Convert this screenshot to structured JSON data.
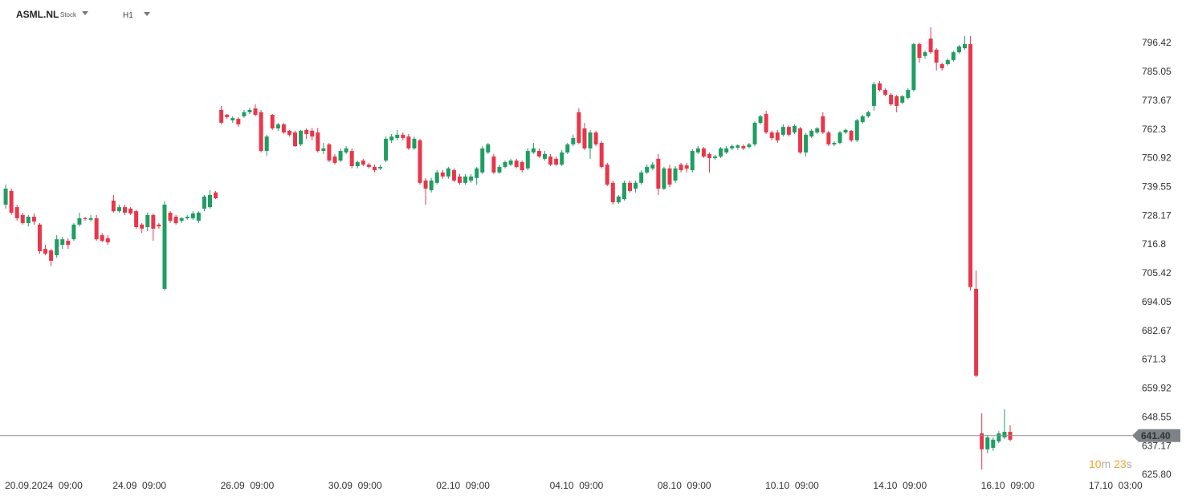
{
  "header": {
    "symbol": "ASML.NL",
    "kind": "Stock",
    "interval": "H1"
  },
  "chart_data": {
    "type": "candlestick",
    "up_color": "#1f9d62",
    "down_color": "#e8364a",
    "open": [
      732.7,
      738.1,
      731.7,
      728.6,
      725.4,
      727.9,
      724.8,
      715.2,
      714.6,
      712.7,
      716.8,
      718.4,
      719.0,
      724.8,
      727.3,
      726.7,
      727.3,
      720.6,
      719.4,
      734.3,
      730.1,
      731.7,
      731.1,
      730.1,
      724.8,
      723.8,
      728.6,
      724.8,
      699.4,
      729.5,
      727.9,
      726.3,
      727.3,
      727.3,
      726.3,
      731.1,
      731.7,
      737.5,
      770.1,
      768.2,
      766.0,
      766.6,
      767.6,
      769.2,
      770.7,
      769.2,
      753.9,
      768.2,
      762.8,
      764.4,
      761.9,
      761.2,
      756.5,
      762.2,
      761.9,
      761.2,
      753.9,
      756.5,
      751.7,
      750.1,
      753.3,
      753.9,
      747.9,
      750.1,
      748.5,
      747.6,
      747.0,
      750.1,
      758.1,
      759.0,
      760.3,
      759.6,
      754.9,
      758.1,
      742.2,
      738.4,
      741.3,
      745.4,
      743.8,
      746.3,
      743.8,
      741.3,
      742.2,
      743.2,
      745.4,
      753.3,
      751.7,
      745.4,
      747.6,
      748.5,
      750.1,
      749.5,
      747.0,
      753.3,
      753.9,
      750.8,
      751.7,
      750.8,
      748.5,
      753.3,
      756.5,
      769.2,
      762.8,
      754.9,
      761.2,
      757.1,
      748.5,
      741.3,
      733.6,
      734.9,
      741.3,
      739.0,
      741.3,
      745.4,
      747.0,
      750.8,
      739.0,
      747.0,
      742.2,
      748.5,
      748.2,
      746.3,
      753.3,
      754.9,
      752.7,
      751.1,
      751.7,
      753.3,
      754.9,
      755.2,
      755.8,
      755.5,
      756.5,
      765.0,
      768.5,
      761.2,
      761.2,
      760.3,
      763.4,
      761.2,
      762.8,
      753.3,
      759.6,
      761.2,
      767.6,
      761.2,
      756.5,
      757.1,
      761.2,
      761.9,
      758.1,
      765.3,
      767.6,
      771.7,
      780.6,
      778.0,
      776.1,
      775.5,
      773.0,
      774.9,
      778.0,
      796.1,
      791.4,
      798.3,
      793.9,
      788.2,
      788.2,
      789.8,
      792.9,
      794.5,
      796.1,
      699.4,
      642.3,
      636.0,
      636.6,
      639.1,
      640.7,
      642.9
    ],
    "high": [
      740.6,
      739.0,
      732.7,
      729.5,
      728.6,
      729.2,
      725.4,
      716.8,
      715.2,
      720.6,
      720.0,
      719.4,
      725.4,
      729.5,
      727.9,
      728.6,
      728.6,
      721.5,
      720.6,
      736.5,
      732.7,
      732.7,
      731.7,
      730.6,
      725.4,
      729.5,
      729.2,
      725.4,
      734.0,
      730.1,
      728.6,
      727.9,
      728.6,
      730.1,
      730.1,
      736.5,
      738.4,
      738.1,
      771.7,
      768.5,
      767.6,
      767.3,
      770.1,
      771.0,
      772.3,
      770.1,
      760.3,
      768.5,
      765.0,
      765.0,
      762.2,
      761.9,
      762.2,
      762.8,
      763.0,
      763.0,
      757.1,
      757.1,
      752.7,
      754.9,
      755.8,
      754.9,
      750.1,
      750.8,
      749.2,
      748.5,
      748.5,
      759.6,
      760.6,
      762.2,
      761.2,
      760.6,
      759.6,
      758.7,
      743.2,
      743.2,
      746.3,
      746.3,
      747.6,
      747.0,
      744.8,
      744.8,
      744.8,
      747.6,
      755.8,
      757.1,
      752.7,
      748.5,
      750.1,
      750.8,
      750.8,
      750.1,
      754.9,
      757.1,
      754.9,
      753.9,
      752.7,
      751.7,
      754.3,
      757.1,
      760.3,
      770.7,
      765.0,
      762.2,
      761.9,
      757.7,
      749.2,
      742.2,
      736.5,
      742.2,
      742.2,
      742.2,
      746.3,
      748.5,
      749.5,
      752.7,
      747.6,
      748.5,
      747.9,
      749.2,
      749.2,
      754.6,
      755.8,
      755.5,
      753.3,
      752.4,
      755.5,
      755.8,
      756.5,
      756.5,
      756.5,
      757.1,
      765.6,
      768.2,
      769.8,
      761.9,
      762.2,
      764.4,
      764.1,
      764.4,
      763.4,
      760.9,
      762.5,
      763.4,
      769.2,
      761.9,
      757.7,
      761.9,
      762.8,
      762.2,
      766.6,
      768.2,
      769.8,
      781.2,
      781.5,
      778.7,
      776.8,
      776.1,
      776.1,
      778.7,
      796.7,
      796.7,
      793.5,
      802.8,
      794.5,
      788.8,
      790.4,
      793.5,
      795.8,
      799.3,
      799.3,
      706.7,
      650.2,
      641.6,
      640.7,
      643.2,
      651.8,
      645.5
    ],
    "low": [
      731.1,
      728.6,
      726.3,
      724.8,
      724.1,
      724.8,
      713.3,
      712.7,
      708.3,
      711.7,
      715.2,
      715.2,
      718.4,
      724.1,
      726.3,
      726.0,
      718.4,
      717.8,
      716.8,
      729.5,
      729.5,
      728.6,
      728.6,
      723.2,
      721.5,
      722.2,
      718.4,
      723.2,
      698.8,
      725.4,
      724.8,
      725.4,
      726.7,
      726.7,
      725.4,
      730.1,
      731.1,
      734.9,
      764.4,
      766.6,
      765.0,
      763.4,
      767.0,
      768.5,
      767.6,
      753.3,
      752.0,
      762.2,
      761.9,
      760.6,
      759.6,
      755.5,
      755.8,
      758.7,
      758.1,
      753.3,
      752.7,
      749.5,
      748.5,
      749.5,
      752.7,
      747.0,
      747.0,
      747.9,
      747.0,
      745.4,
      746.3,
      749.5,
      757.1,
      758.1,
      758.1,
      754.3,
      754.3,
      740.6,
      732.7,
      737.5,
      740.6,
      742.9,
      742.9,
      741.6,
      740.6,
      740.6,
      741.3,
      740.6,
      744.8,
      752.7,
      744.8,
      744.8,
      747.0,
      747.9,
      747.0,
      745.4,
      746.3,
      752.7,
      751.1,
      750.1,
      747.9,
      747.9,
      747.9,
      752.7,
      755.8,
      756.5,
      754.3,
      750.8,
      755.8,
      747.0,
      740.0,
      732.7,
      733.0,
      734.3,
      737.5,
      737.5,
      740.6,
      744.8,
      746.3,
      736.5,
      738.4,
      739.6,
      741.3,
      745.4,
      745.4,
      745.4,
      752.7,
      751.1,
      745.4,
      750.4,
      751.1,
      752.7,
      754.3,
      754.3,
      754.3,
      754.9,
      755.8,
      764.4,
      760.6,
      758.1,
      757.1,
      759.6,
      759.6,
      760.6,
      752.7,
      751.7,
      759.0,
      760.6,
      760.6,
      755.8,
      755.8,
      756.5,
      760.6,
      757.4,
      757.4,
      764.7,
      767.0,
      769.8,
      777.4,
      775.5,
      771.7,
      769.2,
      772.3,
      774.2,
      777.4,
      788.8,
      790.4,
      792.3,
      785.7,
      785.7,
      787.6,
      789.2,
      792.3,
      793.9,
      698.8,
      664.5,
      628.0,
      634.4,
      635.4,
      638.5,
      640.0,
      639.1
    ],
    "close": [
      739.0,
      729.5,
      727.3,
      725.4,
      727.9,
      726.0,
      714.3,
      713.3,
      710.5,
      719.0,
      719.0,
      716.8,
      724.8,
      727.3,
      727.0,
      727.3,
      719.0,
      718.4,
      717.8,
      730.1,
      731.7,
      729.5,
      729.2,
      723.8,
      723.2,
      728.6,
      723.2,
      724.1,
      732.7,
      726.3,
      725.4,
      727.3,
      727.9,
      729.2,
      729.5,
      735.9,
      736.5,
      735.2,
      765.0,
      767.3,
      766.9,
      764.4,
      769.2,
      770.1,
      768.2,
      753.9,
      759.6,
      762.8,
      764.4,
      761.2,
      760.3,
      755.8,
      761.9,
      760.6,
      759.6,
      753.9,
      754.9,
      750.1,
      749.2,
      753.9,
      754.9,
      747.9,
      749.5,
      748.5,
      747.6,
      746.3,
      747.6,
      758.7,
      759.6,
      760.3,
      759.0,
      754.9,
      758.7,
      741.3,
      739.0,
      742.2,
      745.4,
      743.8,
      747.0,
      742.2,
      741.3,
      743.8,
      743.8,
      747.0,
      754.9,
      756.5,
      745.4,
      747.6,
      749.5,
      750.1,
      747.6,
      746.3,
      753.9,
      754.9,
      751.7,
      752.7,
      748.5,
      748.5,
      753.3,
      756.5,
      759.0,
      757.1,
      754.9,
      761.2,
      756.5,
      747.6,
      740.6,
      733.6,
      735.9,
      741.3,
      738.1,
      741.3,
      745.4,
      747.6,
      748.5,
      739.0,
      747.0,
      740.6,
      747.0,
      746.3,
      746.9,
      753.9,
      754.9,
      751.7,
      751.1,
      751.7,
      754.9,
      754.9,
      755.8,
      756.1,
      754.9,
      756.5,
      765.0,
      767.6,
      761.2,
      759.0,
      758.1,
      763.4,
      760.3,
      763.8,
      753.3,
      760.3,
      761.9,
      762.8,
      761.2,
      756.5,
      757.1,
      761.2,
      762.2,
      758.1,
      766.0,
      767.6,
      769.2,
      780.3,
      778.0,
      776.1,
      772.3,
      771.7,
      775.5,
      778.0,
      796.1,
      790.7,
      792.9,
      792.9,
      788.8,
      786.6,
      789.8,
      792.9,
      795.2,
      796.1,
      700.1,
      665.1,
      636.0,
      640.7,
      639.8,
      642.3,
      642.9,
      639.8
    ],
    "xlim": [
      -1,
      198.5
    ],
    "xticks": [
      {
        "value": 0,
        "label": "20.09.2024  09:00"
      },
      {
        "value": 19,
        "label": "24.09  09:00"
      },
      {
        "value": 38,
        "label": "26.09  09:00"
      },
      {
        "value": 57,
        "label": "30.09  09:00"
      },
      {
        "value": 76,
        "label": "02.10  09:00"
      },
      {
        "value": 96,
        "label": "04.10  09:00"
      },
      {
        "value": 115,
        "label": "08.10  09:00"
      },
      {
        "value": 134,
        "label": "10.10  09:00"
      },
      {
        "value": 153,
        "label": "14.10  09:00"
      },
      {
        "value": 172,
        "label": "16.10  09:00"
      },
      {
        "value": 191,
        "label": "17.10  03:00"
      }
    ],
    "ylim": [
      625.8,
      813.55
    ],
    "yticks": [
      {
        "value": 625.8,
        "label": "625.80"
      },
      637.17,
      648.55,
      659.92,
      671.3,
      682.67,
      694.05,
      705.42,
      716.8,
      728.17,
      739.55,
      750.92,
      762.3,
      773.67,
      785.05,
      796.42
    ],
    "last_price": {
      "value": 641.4,
      "label": "641.40"
    },
    "countdown": "10m 23s"
  }
}
